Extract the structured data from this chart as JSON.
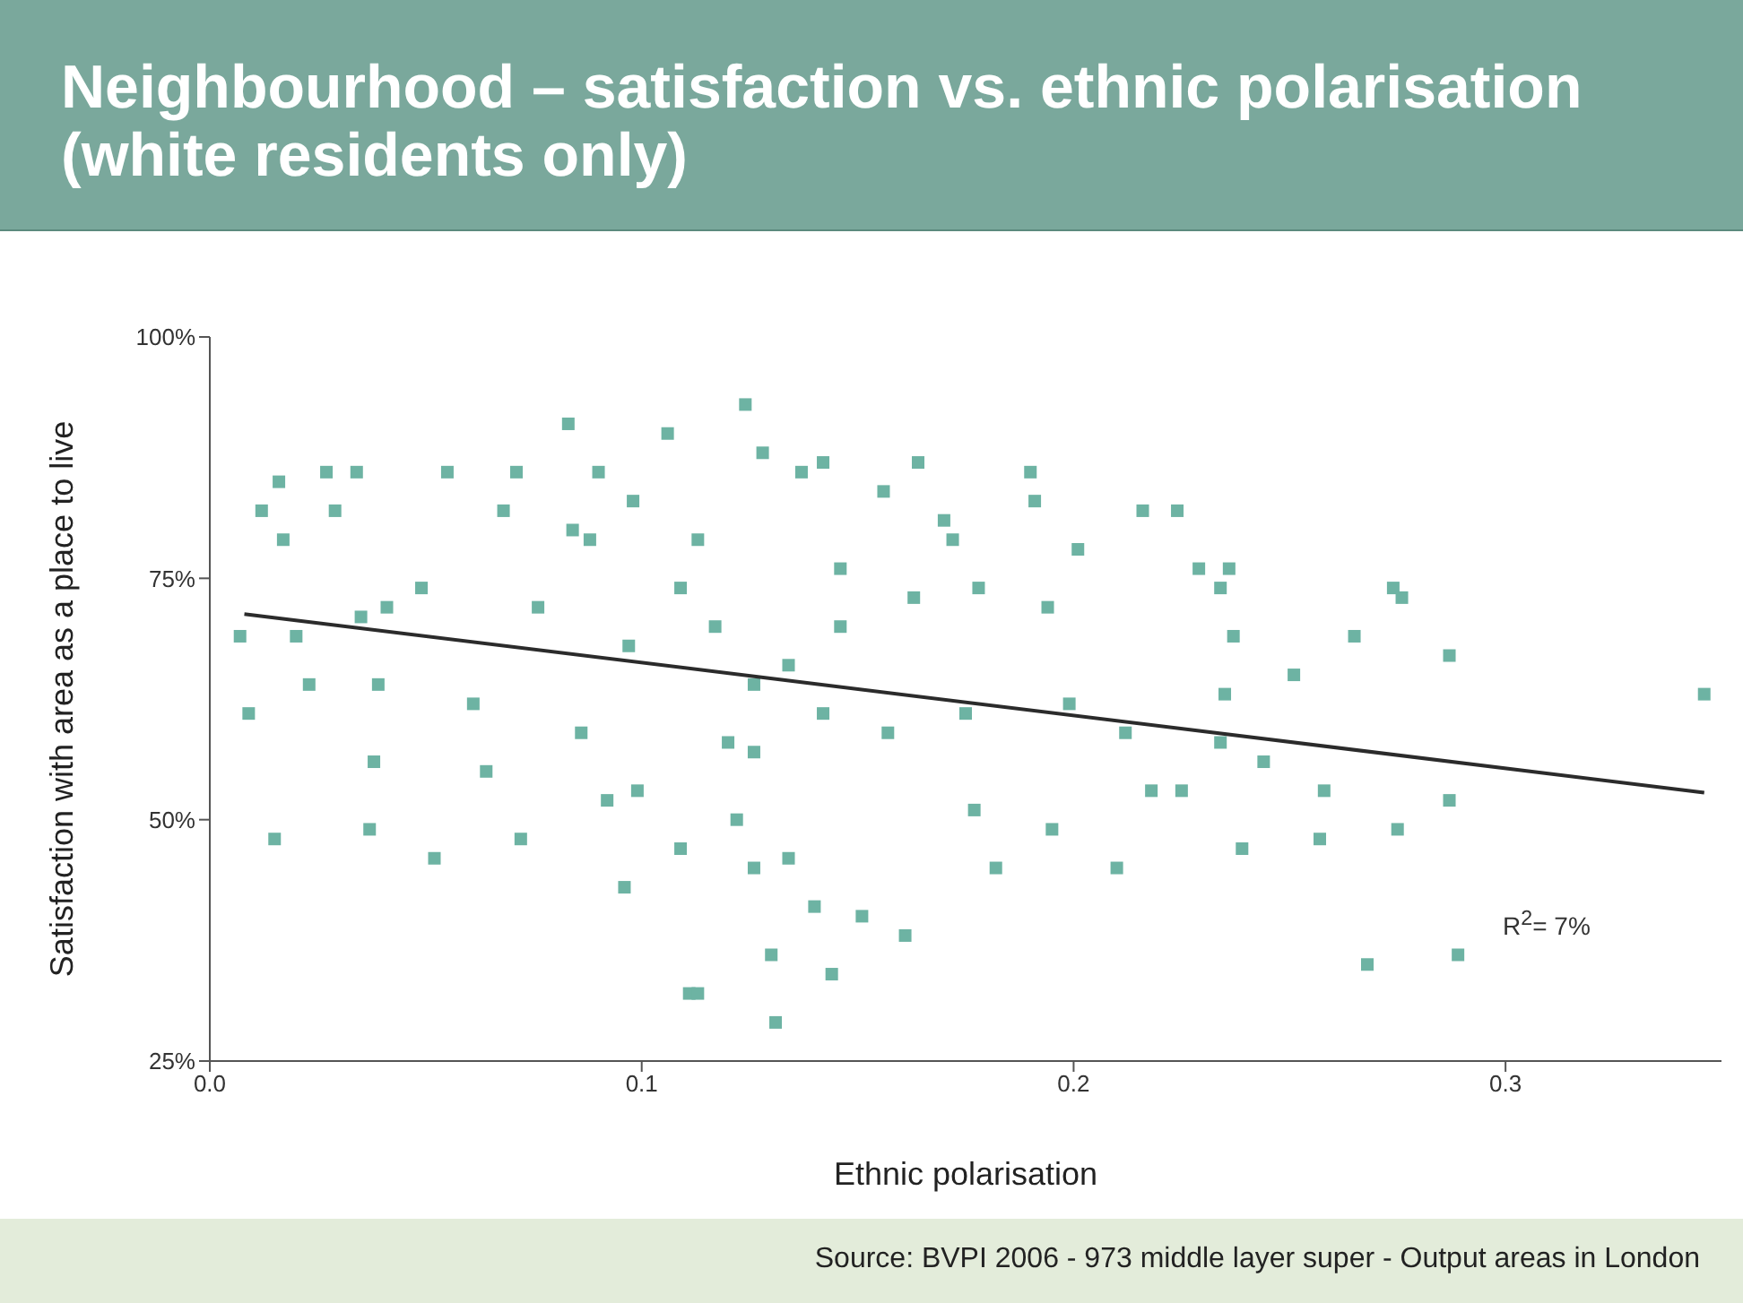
{
  "chart_data": {
    "type": "scatter",
    "title": "Neighbourhood – satisfaction vs. ethnic polarisation (white residents only)",
    "xlabel": "Ethnic polarisation",
    "ylabel": "Satisfaction with area as a place to live",
    "xlim": [
      0,
      0.35
    ],
    "xticks": [
      {
        "value": 0,
        "label": "0.0"
      },
      0.1,
      0.2,
      0.3
    ],
    "ylim": [
      25,
      100
    ],
    "yticks": [
      {
        "value": 25,
        "label": "25%"
      },
      {
        "value": 50,
        "label": "50%"
      },
      {
        "value": 75,
        "label": "75%"
      },
      {
        "value": 100,
        "label": "100%"
      }
    ],
    "grid": false,
    "marker": "square",
    "annotations": [
      "R$^{2}$= 7%",
      "Source: BVPI 2006 - 973 middle layer super - Output areas in London"
    ],
    "series": [
      {
        "color": "#6db3a3",
        "x": [
          0.007,
          0.009,
          0.012,
          0.015,
          0.016,
          0.017,
          0.02,
          0.023,
          0.027,
          0.029,
          0.034,
          0.035,
          0.037,
          0.038,
          0.039,
          0.041,
          0.049,
          0.052,
          0.055,
          0.061,
          0.064,
          0.068,
          0.071,
          0.072,
          0.083,
          0.084,
          0.086,
          0.088,
          0.09,
          0.092,
          0.096,
          0.098,
          0.099,
          0.106,
          0.109,
          0.111,
          0.113,
          0.12,
          0.122,
          0.124,
          0.126,
          0.128,
          0.13,
          0.131,
          0.134,
          0.137,
          0.14,
          0.142,
          0.144,
          0.146,
          0.151,
          0.156,
          0.157,
          0.161,
          0.163,
          0.164,
          0.17,
          0.172,
          0.175,
          0.177,
          0.178,
          0.182,
          0.19,
          0.191,
          0.194,
          0.195,
          0.199,
          0.201,
          0.21,
          0.212,
          0.216,
          0.218,
          0.224,
          0.225,
          0.229,
          0.234,
          0.234,
          0.235,
          0.236,
          0.237,
          0.239,
          0.244,
          0.251,
          0.257,
          0.258,
          0.265,
          0.268,
          0.274,
          0.275,
          0.276,
          0.287,
          0.287,
          0.289,
          0.346,
          0.117,
          0.126,
          0.109,
          0.134,
          0.142,
          0.097,
          0.076,
          0.146,
          0.126,
          0.113
        ],
        "values": [
          69,
          61,
          82,
          48,
          85,
          79,
          69,
          64,
          86,
          82,
          86,
          71,
          49,
          56,
          64,
          72,
          74,
          46,
          86,
          62,
          55,
          82,
          86,
          48,
          91,
          80,
          59,
          79,
          86,
          52,
          43,
          83,
          53,
          90,
          47,
          32,
          32,
          58,
          50,
          93,
          45,
          88,
          36,
          29,
          46,
          86,
          41,
          87,
          34,
          76,
          40,
          84,
          59,
          38,
          73,
          87,
          81,
          79,
          61,
          51,
          74,
          45,
          86,
          83,
          72,
          49,
          62,
          78,
          45,
          59,
          82,
          53,
          82,
          53,
          76,
          74,
          58,
          63,
          76,
          69,
          47,
          56,
          65,
          48,
          53,
          69,
          35,
          74,
          49,
          73,
          67,
          52,
          36,
          63,
          70,
          64,
          74,
          66,
          61,
          68,
          72,
          70,
          57,
          79
        ]
      },
      {
        "type": "line",
        "color": "#2b2b2b",
        "marker": "none",
        "x": [
          0.008,
          0.346
        ],
        "values": [
          71.3,
          52.8
        ]
      }
    ]
  }
}
